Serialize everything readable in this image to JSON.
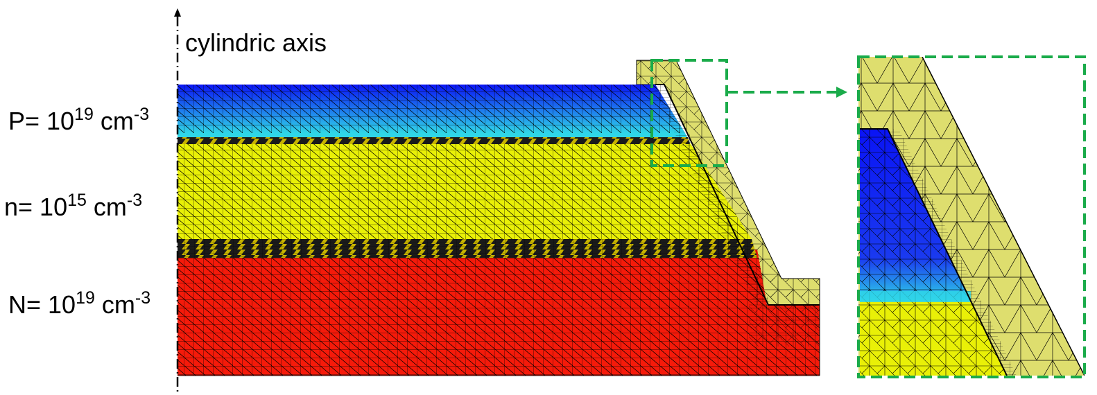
{
  "axis_label": "cylindric axis",
  "layers": [
    {
      "prefix": "P= 10",
      "exponent": "19",
      "unit": " cm",
      "unit_exponent": "-3",
      "color": "#0a14f5"
    },
    {
      "prefix": "n= 10",
      "exponent": "15",
      "unit": " cm",
      "unit_exponent": "-3",
      "color": "#e9f007"
    },
    {
      "prefix": "N= 10",
      "exponent": "19",
      "unit": " cm",
      "unit_exponent": "-3",
      "color": "#f51a0a"
    }
  ],
  "colors": {
    "p_layer": "#0a14f5",
    "n_layer": "#e9f007",
    "N_layer": "#f51a0a",
    "passivation": "#dede6e",
    "transition": "#2fd6e8",
    "zoom_frame": "#1aab4a",
    "mesh_line": "#000000"
  }
}
